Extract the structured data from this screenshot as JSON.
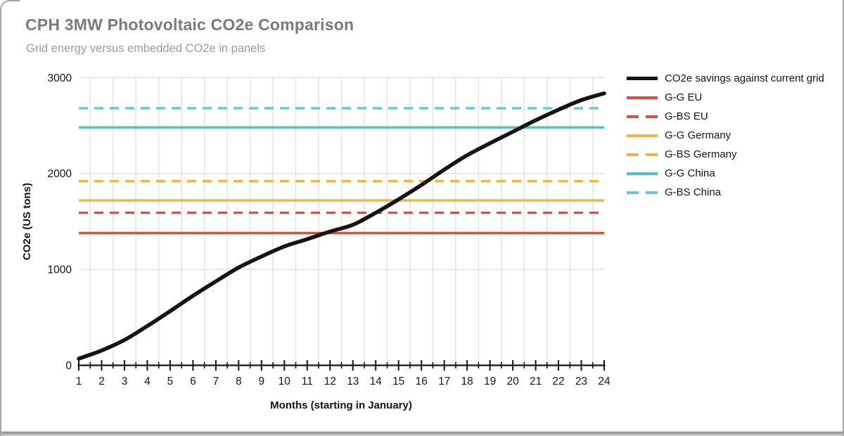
{
  "chart_data": {
    "type": "line",
    "title": "CPH 3MW Photovoltaic CO2e Comparison",
    "subtitle": "Grid energy versus embedded CO2e in panels",
    "xlabel": "Months (starting in January)",
    "ylabel": "CO2e (US tons)",
    "xlim": [
      1,
      24
    ],
    "ylim": [
      0,
      3000
    ],
    "x_ticks": [
      1,
      2,
      3,
      4,
      5,
      6,
      7,
      8,
      9,
      10,
      11,
      12,
      13,
      14,
      15,
      16,
      17,
      18,
      19,
      20,
      21,
      22,
      23,
      24
    ],
    "x_minor_tick_step": 0.5,
    "y_ticks": [
      0,
      1000,
      2000,
      3000
    ],
    "grid": {
      "vertical_at_half_months": true,
      "horizontal_at_y_ticks": true,
      "color": "#e3e3e3"
    },
    "legend_position": "right",
    "x": [
      1,
      2,
      3,
      4,
      5,
      6,
      7,
      8,
      9,
      10,
      11,
      12,
      13,
      14,
      15,
      16,
      17,
      18,
      19,
      20,
      21,
      22,
      23,
      24
    ],
    "series": [
      {
        "name": "CO2e savings against current grid",
        "kind": "curve",
        "style": "solid",
        "color": "#141414",
        "values": [
          70,
          155,
          265,
          410,
          565,
          725,
          875,
          1020,
          1135,
          1240,
          1315,
          1395,
          1465,
          1590,
          1730,
          1880,
          2040,
          2190,
          2315,
          2435,
          2555,
          2665,
          2765,
          2835
        ]
      },
      {
        "name": "G-G EU",
        "kind": "hline",
        "style": "solid",
        "color": "#d8503f",
        "value": 1380
      },
      {
        "name": "G-BS EU",
        "kind": "hline",
        "style": "dashed",
        "color": "#d8503f",
        "value": 1590
      },
      {
        "name": "G-G Germany",
        "kind": "hline",
        "style": "solid",
        "color": "#f0b441",
        "value": 1720
      },
      {
        "name": "G-BS Germany",
        "kind": "hline",
        "style": "dashed",
        "color": "#f0b441",
        "value": 1920
      },
      {
        "name": "G-G China",
        "kind": "hline",
        "style": "solid",
        "color": "#55bdc8",
        "value": 2480
      },
      {
        "name": "G-BS China",
        "kind": "hline",
        "style": "dashed",
        "color": "#6cc3d1",
        "value": 2680
      }
    ]
  }
}
